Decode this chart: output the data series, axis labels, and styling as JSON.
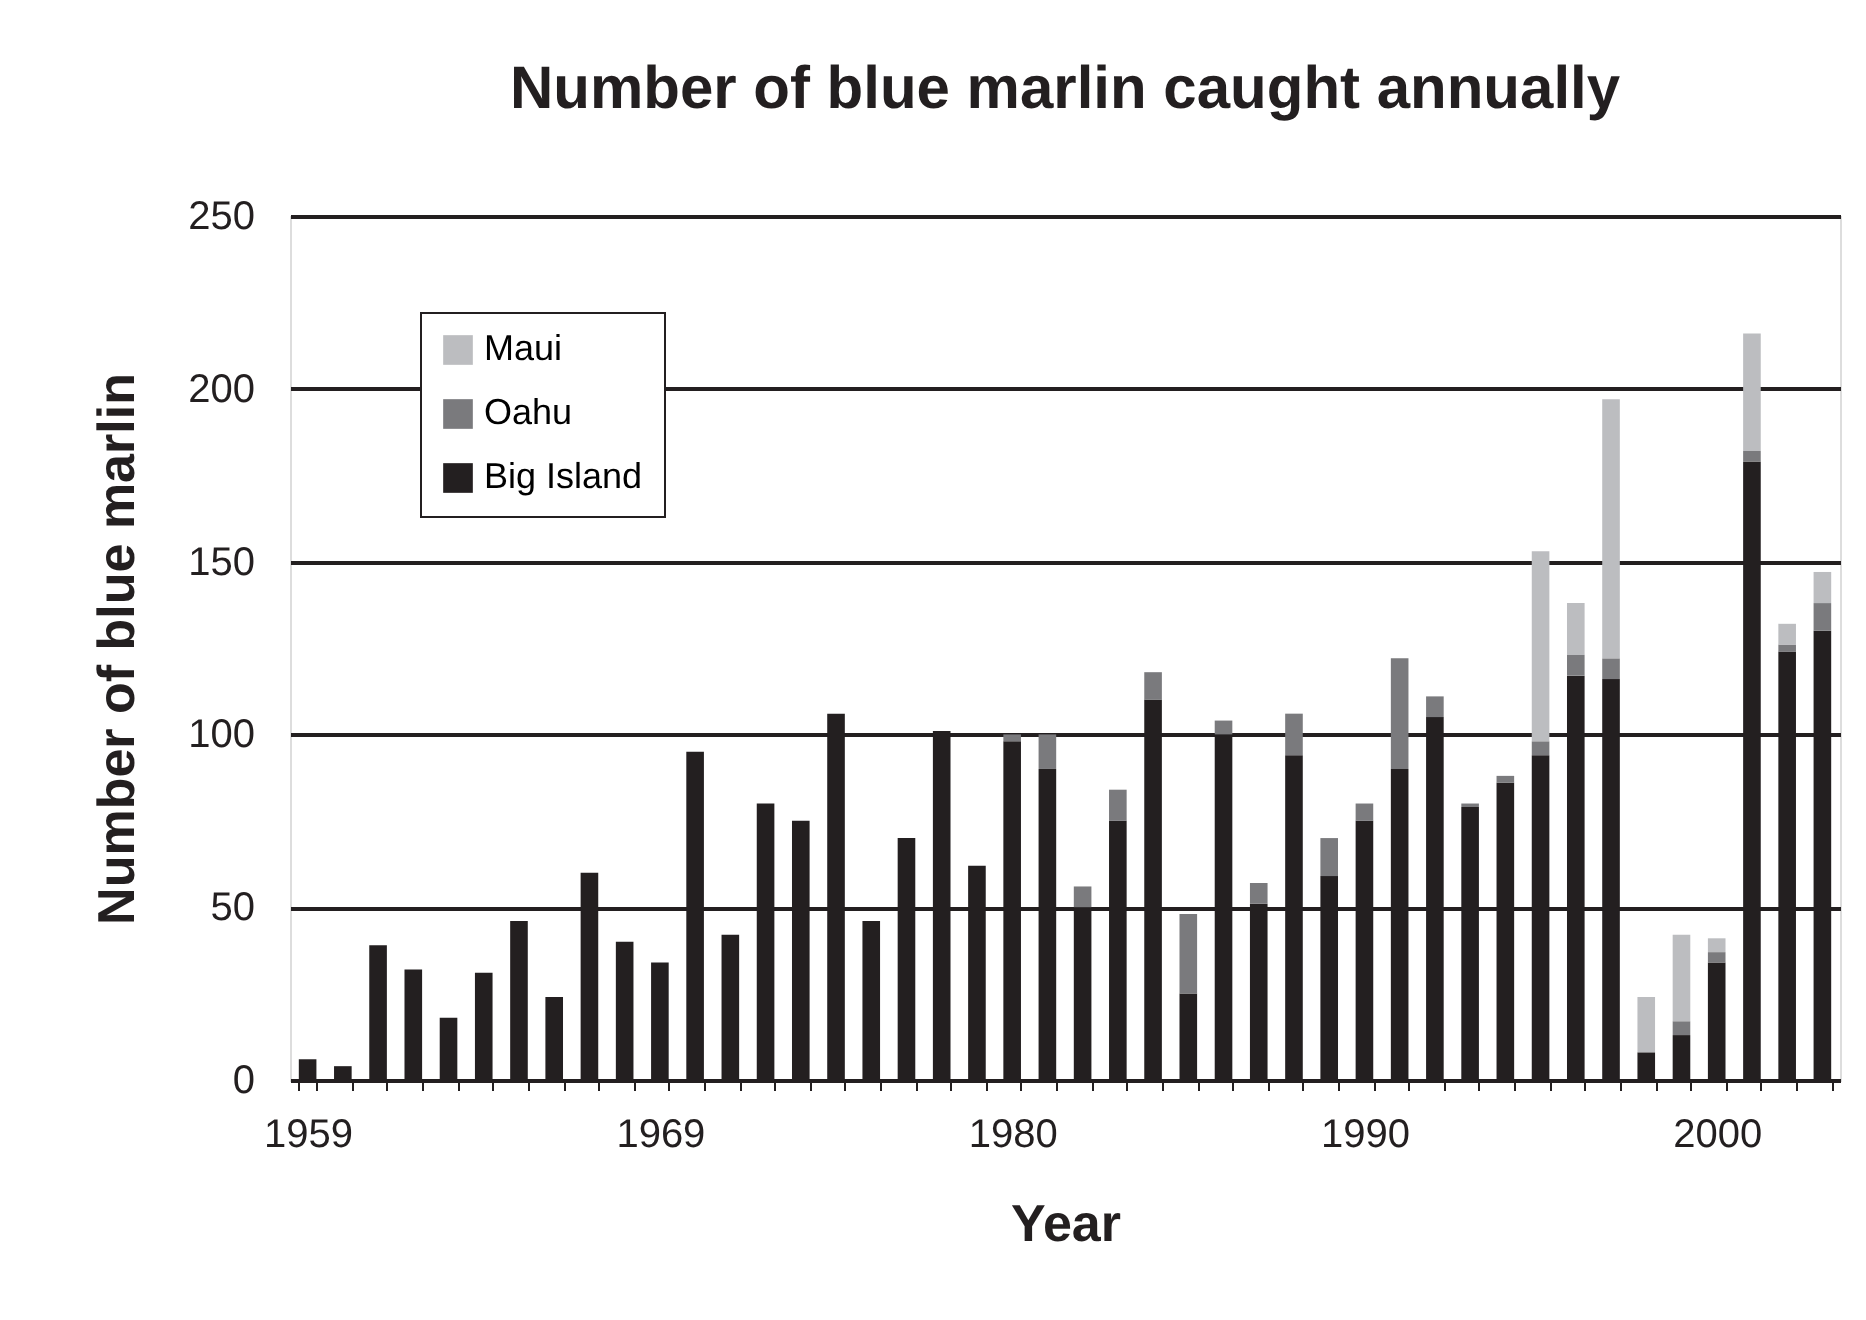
{
  "chart_data": {
    "type": "bar",
    "stacked": true,
    "title": "Number of blue marlin caught annually",
    "xlabel": "Year",
    "ylabel": "Number of blue marlin",
    "categories": [
      "1959",
      null,
      null,
      null,
      null,
      null,
      null,
      null,
      null,
      null,
      "1969",
      null,
      null,
      null,
      null,
      null,
      null,
      null,
      null,
      null,
      "1980",
      null,
      null,
      null,
      null,
      null,
      null,
      null,
      null,
      null,
      "1990",
      null,
      null,
      null,
      null,
      null,
      null,
      null,
      null,
      null,
      "2000",
      null,
      null,
      null
    ],
    "series": [
      {
        "name": "Big Island",
        "color": "#231f20",
        "values": [
          6,
          4,
          39,
          32,
          18,
          31,
          46,
          24,
          60,
          40,
          34,
          95,
          42,
          80,
          75,
          106,
          46,
          70,
          101,
          62,
          98,
          90,
          50,
          75,
          110,
          25,
          100,
          51,
          94,
          59,
          75,
          90,
          105,
          79,
          86,
          94,
          117,
          116,
          8,
          13,
          34,
          179,
          124,
          130
        ]
      },
      {
        "name": "Oahu",
        "color": "#7a7a7d",
        "values": [
          null,
          null,
          null,
          null,
          null,
          null,
          null,
          null,
          null,
          null,
          null,
          null,
          null,
          null,
          null,
          null,
          null,
          null,
          null,
          null,
          2,
          10,
          6,
          9,
          8,
          23,
          4,
          6,
          12,
          11,
          5,
          32,
          6,
          1,
          2,
          4,
          6,
          6,
          null,
          4,
          3,
          3,
          2,
          8
        ]
      },
      {
        "name": "Maui",
        "color": "#bcbdc0",
        "values": [
          null,
          null,
          null,
          null,
          null,
          null,
          null,
          null,
          null,
          null,
          null,
          null,
          null,
          null,
          null,
          null,
          null,
          null,
          null,
          null,
          null,
          null,
          null,
          null,
          null,
          null,
          null,
          null,
          null,
          null,
          null,
          null,
          null,
          null,
          null,
          55,
          15,
          75,
          16,
          25,
          4,
          34,
          6,
          9
        ]
      }
    ],
    "ylim": [
      0,
      250
    ],
    "yticks": [
      0,
      50,
      100,
      150,
      200,
      250
    ],
    "grid": "y",
    "legend": "top left"
  }
}
